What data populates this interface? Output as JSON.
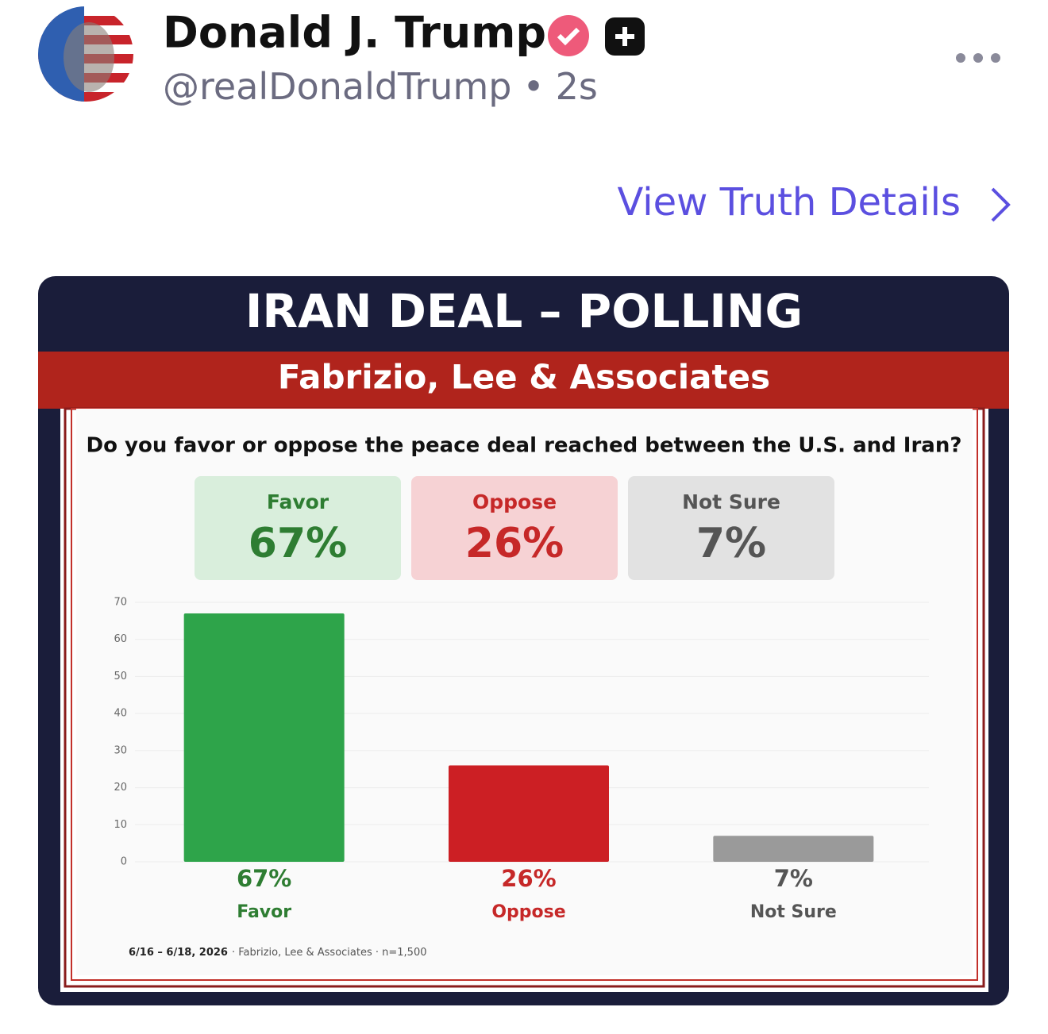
{
  "post": {
    "name": "Donald J. Trump",
    "handle": "@realDonaldTrump",
    "separator": "•",
    "time": "2s",
    "details_link": "View Truth Details"
  },
  "chart_data": {
    "type": "bar",
    "title": "IRAN DEAL – POLLING",
    "subtitle": "Fabrizio, Lee & Associates",
    "question": "Do you favor or oppose the peace deal reached between the U.S. and Iran?",
    "categories": [
      "Favor",
      "Oppose",
      "Not Sure"
    ],
    "values": [
      67,
      26,
      7
    ],
    "value_labels": [
      "67%",
      "26%",
      "7%"
    ],
    "colors": [
      "#2ea44a",
      "#cc1f24",
      "#9a9a9a"
    ],
    "ylim": [
      0,
      70
    ],
    "yticks": [
      0,
      10,
      20,
      30,
      40,
      50,
      60,
      70
    ],
    "grid": true,
    "footnote_date": "6/16 – 6/18, 2026",
    "footnote_source": "· Fabrizio, Lee & Associates · n=1,500"
  }
}
